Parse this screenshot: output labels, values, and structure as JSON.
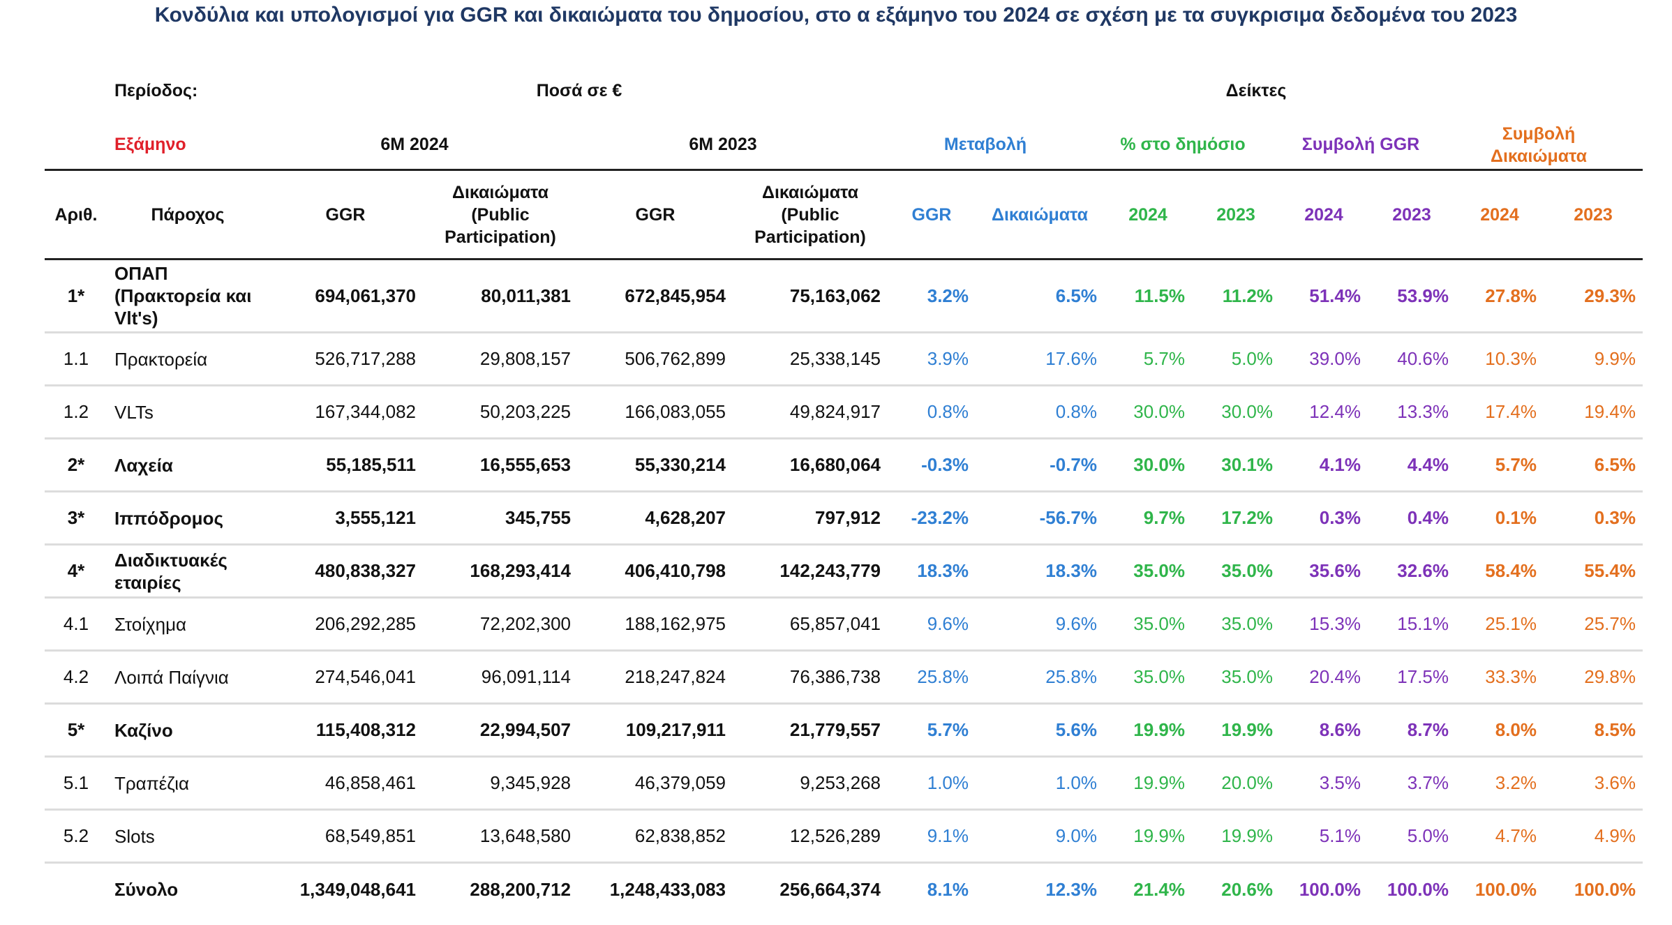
{
  "title": "Κονδύλια και υπολογισμοί για GGR και δικαιώματα του δημοσίου, στο α εξάμηνο του 2024 σε σχέση με τα συγκρισιμα δεδομένα του 2023",
  "header": {
    "period_label": "Περίοδος:",
    "amounts_label": "Ποσά σε €",
    "indices_label": "Δείκτες",
    "semester_label": "Εξάμηνο",
    "period_2024": "6M 2024",
    "period_2023": "6M 2023",
    "change_label": "Μεταβολή",
    "public_share_label": "% στο δημόσιο",
    "ggr_contribution_label": "Συμβολή GGR",
    "rights_contribution_label": "Συμβολή Δικαιώματα"
  },
  "columns": {
    "num": "Αριθ.",
    "provider": "Πάροχος",
    "ggr": "GGR",
    "rights": "Δικαιώματα (Public Participation)",
    "change_ggr": "GGR",
    "change_rights": "Δικαιώματα",
    "y2024": "2024",
    "y2023": "2023"
  },
  "colors": {
    "title": "#1f3864",
    "semester": "#e0202a",
    "change": "#2f7fd3",
    "public_share": "#2fb54a",
    "ggr_contribution": "#7d32b8",
    "rights_contribution": "#e36f1e"
  },
  "rows": [
    {
      "id": "1*",
      "name": "ΟΠΑΠ (Πρακτορεία και Vlt's)",
      "bold": true,
      "ggr24": "694,061,370",
      "rights24": "80,011,381",
      "ggr23": "672,845,954",
      "rights23": "75,163,062",
      "chg_ggr": "3.2%",
      "chg_rights": "6.5%",
      "pub24": "11.5%",
      "pub23": "11.2%",
      "cggr24": "51.4%",
      "cggr23": "53.9%",
      "crights24": "27.8%",
      "crights23": "29.3%"
    },
    {
      "id": "1.1",
      "name": "Πρακτορεία",
      "bold": false,
      "ggr24": "526,717,288",
      "rights24": "29,808,157",
      "ggr23": "506,762,899",
      "rights23": "25,338,145",
      "chg_ggr": "3.9%",
      "chg_rights": "17.6%",
      "pub24": "5.7%",
      "pub23": "5.0%",
      "cggr24": "39.0%",
      "cggr23": "40.6%",
      "crights24": "10.3%",
      "crights23": "9.9%"
    },
    {
      "id": "1.2",
      "name": "VLTs",
      "bold": false,
      "ggr24": "167,344,082",
      "rights24": "50,203,225",
      "ggr23": "166,083,055",
      "rights23": "49,824,917",
      "chg_ggr": "0.8%",
      "chg_rights": "0.8%",
      "pub24": "30.0%",
      "pub23": "30.0%",
      "cggr24": "12.4%",
      "cggr23": "13.3%",
      "crights24": "17.4%",
      "crights23": "19.4%"
    },
    {
      "id": "2*",
      "name": "Λαχεία",
      "bold": true,
      "ggr24": "55,185,511",
      "rights24": "16,555,653",
      "ggr23": "55,330,214",
      "rights23": "16,680,064",
      "chg_ggr": "-0.3%",
      "chg_rights": "-0.7%",
      "pub24": "30.0%",
      "pub23": "30.1%",
      "cggr24": "4.1%",
      "cggr23": "4.4%",
      "crights24": "5.7%",
      "crights23": "6.5%"
    },
    {
      "id": "3*",
      "name": "Ιππόδρομος",
      "bold": true,
      "ggr24": "3,555,121",
      "rights24": "345,755",
      "ggr23": "4,628,207",
      "rights23": "797,912",
      "chg_ggr": "-23.2%",
      "chg_rights": "-56.7%",
      "pub24": "9.7%",
      "pub23": "17.2%",
      "cggr24": "0.3%",
      "cggr23": "0.4%",
      "crights24": "0.1%",
      "crights23": "0.3%"
    },
    {
      "id": "4*",
      "name": "Διαδικτυακές εταιρίες",
      "bold": true,
      "ggr24": "480,838,327",
      "rights24": "168,293,414",
      "ggr23": "406,410,798",
      "rights23": "142,243,779",
      "chg_ggr": "18.3%",
      "chg_rights": "18.3%",
      "pub24": "35.0%",
      "pub23": "35.0%",
      "cggr24": "35.6%",
      "cggr23": "32.6%",
      "crights24": "58.4%",
      "crights23": "55.4%"
    },
    {
      "id": "4.1",
      "name": "Στοίχημα",
      "bold": false,
      "ggr24": "206,292,285",
      "rights24": "72,202,300",
      "ggr23": "188,162,975",
      "rights23": "65,857,041",
      "chg_ggr": "9.6%",
      "chg_rights": "9.6%",
      "pub24": "35.0%",
      "pub23": "35.0%",
      "cggr24": "15.3%",
      "cggr23": "15.1%",
      "crights24": "25.1%",
      "crights23": "25.7%"
    },
    {
      "id": "4.2",
      "name": "Λοιπά Παίγνια",
      "bold": false,
      "ggr24": "274,546,041",
      "rights24": "96,091,114",
      "ggr23": "218,247,824",
      "rights23": "76,386,738",
      "chg_ggr": "25.8%",
      "chg_rights": "25.8%",
      "pub24": "35.0%",
      "pub23": "35.0%",
      "cggr24": "20.4%",
      "cggr23": "17.5%",
      "crights24": "33.3%",
      "crights23": "29.8%"
    },
    {
      "id": "5*",
      "name": "Καζίνο",
      "bold": true,
      "ggr24": "115,408,312",
      "rights24": "22,994,507",
      "ggr23": "109,217,911",
      "rights23": "21,779,557",
      "chg_ggr": "5.7%",
      "chg_rights": "5.6%",
      "pub24": "19.9%",
      "pub23": "19.9%",
      "cggr24": "8.6%",
      "cggr23": "8.7%",
      "crights24": "8.0%",
      "crights23": "8.5%"
    },
    {
      "id": "5.1",
      "name": "Τραπέζια",
      "bold": false,
      "ggr24": "46,858,461",
      "rights24": "9,345,928",
      "ggr23": "46,379,059",
      "rights23": "9,253,268",
      "chg_ggr": "1.0%",
      "chg_rights": "1.0%",
      "pub24": "19.9%",
      "pub23": "20.0%",
      "cggr24": "3.5%",
      "cggr23": "3.7%",
      "crights24": "3.2%",
      "crights23": "3.6%"
    },
    {
      "id": "5.2",
      "name": "Slots",
      "bold": false,
      "ggr24": "68,549,851",
      "rights24": "13,648,580",
      "ggr23": "62,838,852",
      "rights23": "12,526,289",
      "chg_ggr": "9.1%",
      "chg_rights": "9.0%",
      "pub24": "19.9%",
      "pub23": "19.9%",
      "cggr24": "5.1%",
      "cggr23": "5.0%",
      "crights24": "4.7%",
      "crights23": "4.9%"
    },
    {
      "id": "",
      "name": "Σύνολο",
      "bold": true,
      "total": true,
      "ggr24": "1,349,048,641",
      "rights24": "288,200,712",
      "ggr23": "1,248,433,083",
      "rights23": "256,664,374",
      "chg_ggr": "8.1%",
      "chg_rights": "12.3%",
      "pub24": "21.4%",
      "pub23": "20.6%",
      "cggr24": "100.0%",
      "cggr23": "100.0%",
      "crights24": "100.0%",
      "crights23": "100.0%"
    }
  ]
}
